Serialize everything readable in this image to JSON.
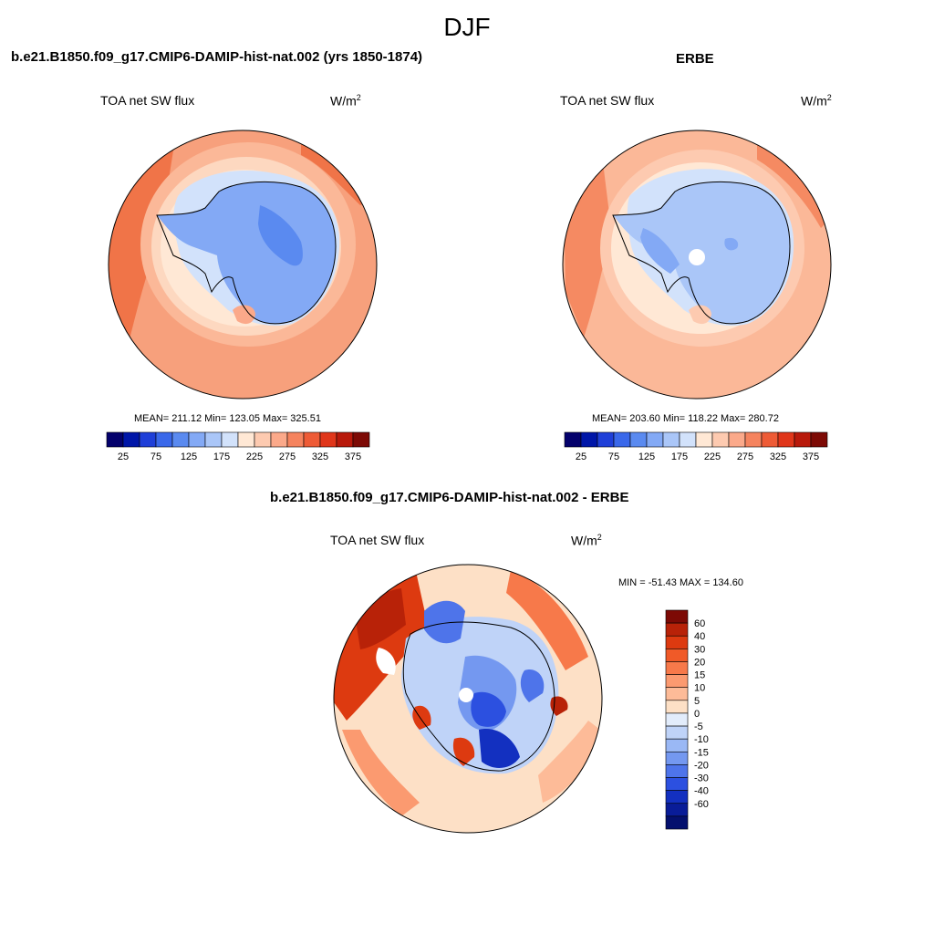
{
  "season": "DJF",
  "panels": [
    {
      "title": "b.e21.B1850.f09_g17.CMIP6-DAMIP-hist-nat.002 (yrs 1850-1874)",
      "variable": "TOA net SW flux",
      "units": "W/m",
      "units_exp": "2",
      "stats": "MEAN= 211.12  Min= 123.05  Max= 325.51",
      "colorbar": {
        "colors": [
          "#04016c",
          "#0016a8",
          "#1f3fd8",
          "#3a68ea",
          "#5a8af0",
          "#83a9f5",
          "#aac6f8",
          "#d2e2fb",
          "#ffe8d5",
          "#fdcab0",
          "#fba98a",
          "#f5835e",
          "#ee5b36",
          "#e0361a",
          "#b8190b",
          "#7d0a05"
        ],
        "labels": [
          "25",
          "75",
          "125",
          "175",
          "225",
          "275",
          "325",
          "375"
        ]
      }
    },
    {
      "title": "ERBE",
      "variable": "TOA net SW flux",
      "units": "W/m",
      "units_exp": "2",
      "stats": "MEAN= 203.60  Min= 118.22  Max= 280.72",
      "colorbar": {
        "colors": [
          "#04016c",
          "#0016a8",
          "#1f3fd8",
          "#3a68ea",
          "#5a8af0",
          "#83a9f5",
          "#aac6f8",
          "#d2e2fb",
          "#ffe8d5",
          "#fdcab0",
          "#fba98a",
          "#f5835e",
          "#ee5b36",
          "#e0361a",
          "#b8190b",
          "#7d0a05"
        ],
        "labels": [
          "25",
          "75",
          "125",
          "175",
          "225",
          "275",
          "325",
          "375"
        ]
      }
    },
    {
      "title": "b.e21.B1850.f09_g17.CMIP6-DAMIP-hist-nat.002 - ERBE",
      "variable": "TOA net SW flux",
      "units": "W/m",
      "units_exp": "2",
      "stats": "MIN = -51.43 MAX = 134.60",
      "colorbar": {
        "colors": [
          "#7d0a05",
          "#b82208",
          "#dd3a10",
          "#f05a28",
          "#f7794a",
          "#fb9a70",
          "#fdbb98",
          "#fde0c6",
          "#e2ecfb",
          "#bfd3f8",
          "#9ab8f5",
          "#7498f0",
          "#4e74ea",
          "#2c50e0",
          "#1330c0",
          "#091c98",
          "#04106e"
        ],
        "labels": [
          "60",
          "40",
          "30",
          "20",
          "15",
          "10",
          "5",
          "0",
          "-5",
          "-10",
          "-15",
          "-20",
          "-30",
          "-40",
          "-60"
        ]
      }
    }
  ]
}
